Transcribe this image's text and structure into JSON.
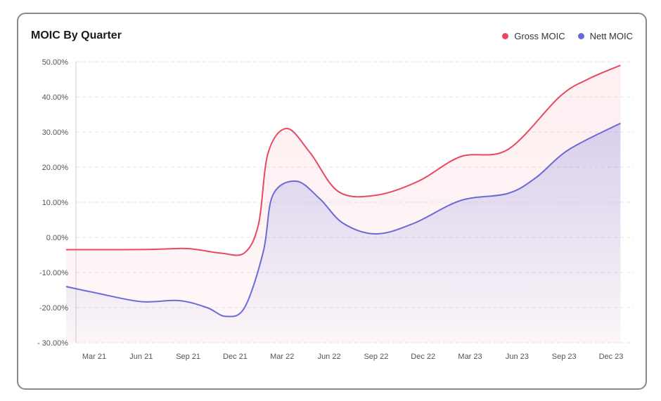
{
  "chart_data": {
    "type": "area",
    "title": "MOIC By Quarter",
    "xlabel": "",
    "ylabel": "",
    "ylim": [
      -30,
      50
    ],
    "yticks": [
      50,
      40,
      30,
      20,
      10,
      0,
      -10,
      -20,
      -30
    ],
    "ytick_labels": [
      "50.00%",
      "40.00%",
      "30.00%",
      "20.00%",
      "10.00%",
      "0.00%",
      "-10.00%",
      "-20.00%",
      "- 30.00%"
    ],
    "categories": [
      "Mar 21",
      "Jun 21",
      "Sep 21",
      "Dec 21",
      "Mar 22",
      "Jun 22",
      "Sep 22",
      "Dec 22",
      "Mar 23",
      "Jun 23",
      "Sep 23",
      "Dec 23"
    ],
    "x_start": -0.6,
    "x_end": 11.2,
    "series": [
      {
        "name": "Gross MOIC",
        "color": "#e8495f",
        "x": [
          -0.6,
          0.6,
          1.3,
          2.0,
          2.7,
          3.2,
          3.5,
          3.7,
          4.1,
          4.6,
          5.2,
          6.0,
          6.9,
          7.8,
          8.8,
          9.9,
          10.5,
          11.2
        ],
        "values": [
          -3.5,
          -3.5,
          -3.4,
          -3.2,
          -4.5,
          -4.4,
          4,
          24,
          31,
          24,
          13,
          12,
          16,
          23,
          25,
          40,
          45,
          49
        ]
      },
      {
        "name": "Nett MOIC",
        "color": "#6b6bd6",
        "x": [
          -0.6,
          0.1,
          1.0,
          1.8,
          2.4,
          2.8,
          3.2,
          3.6,
          3.8,
          4.3,
          4.8,
          5.3,
          6.0,
          6.8,
          7.8,
          8.8,
          9.4,
          10.1,
          11.2
        ],
        "values": [
          -14,
          -16,
          -18.3,
          -18,
          -20,
          -22.5,
          -20,
          -4,
          12,
          16,
          11,
          4,
          1,
          4,
          10.5,
          12.5,
          17,
          25,
          32.5
        ]
      }
    ],
    "legend": "top-right",
    "grid": true
  }
}
